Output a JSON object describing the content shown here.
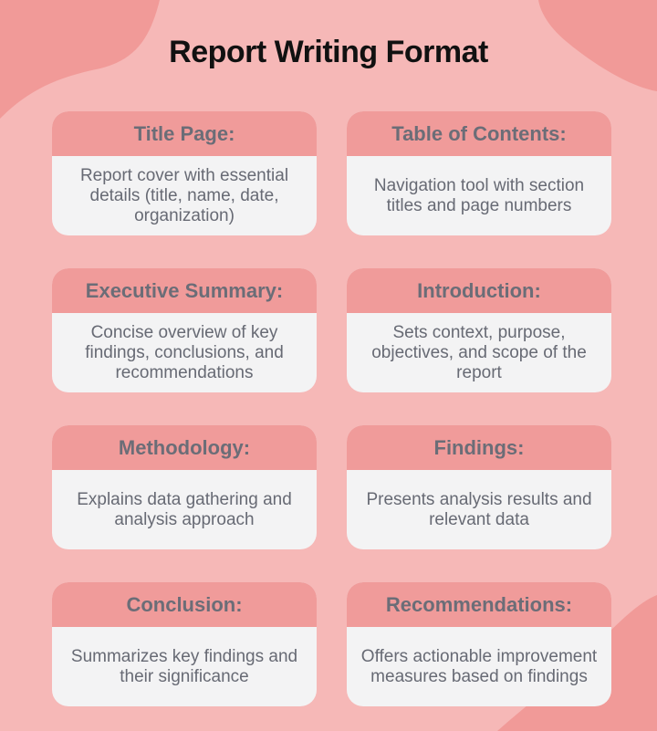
{
  "title": "Report Writing Format",
  "colors": {
    "background": "#f6b8b7",
    "blob": "#f19a98",
    "card_header": "#f09b9a",
    "card_body": "#f3f3f4",
    "text": "#676a74"
  },
  "sections": [
    {
      "heading": "Title Page:",
      "description": "Report cover with essential details (title, name, date, organization)"
    },
    {
      "heading": "Table of Contents:",
      "description": "Navigation tool with section titles and page numbers"
    },
    {
      "heading": "Executive Summary:",
      "description": "Concise overview of key findings, conclusions, and recommendations"
    },
    {
      "heading": "Introduction:",
      "description": "Sets context, purpose, objectives, and scope of the report"
    },
    {
      "heading": "Methodology:",
      "description": "Explains data gathering and analysis approach"
    },
    {
      "heading": "Findings:",
      "description": "Presents analysis results and relevant data"
    },
    {
      "heading": "Conclusion:",
      "description": "Summarizes key findings and their significance"
    },
    {
      "heading": "Recommendations:",
      "description": "Offers actionable improvement measures based on findings"
    }
  ]
}
